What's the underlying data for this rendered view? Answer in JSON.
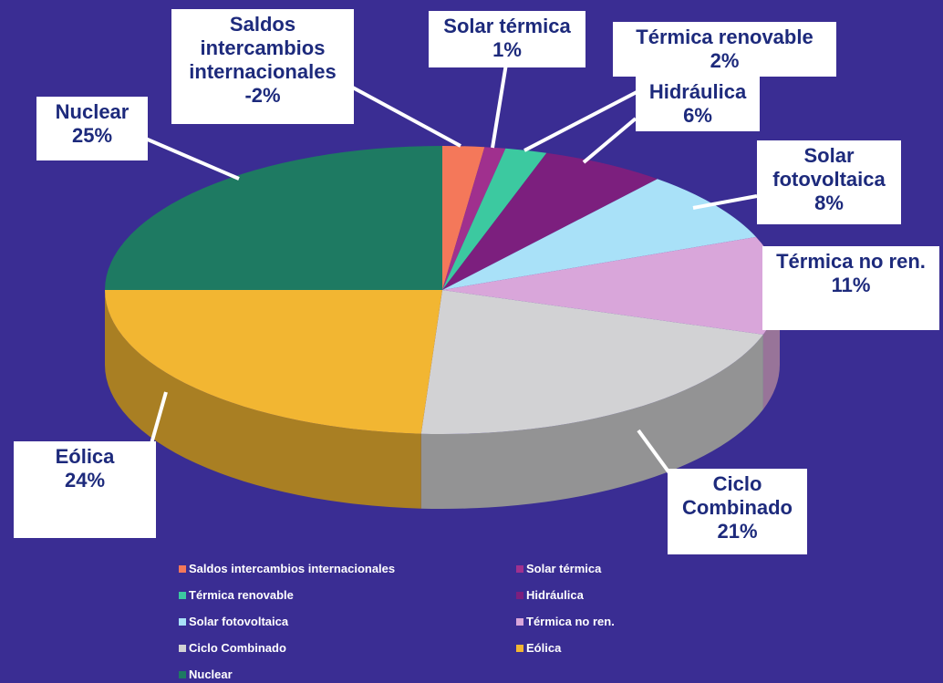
{
  "chart_data": {
    "type": "pie",
    "categories": [
      "Saldos intercambios internacionales",
      "Solar térmica",
      "Térmica renovable",
      "Hidráulica",
      "Solar fotovoltaica",
      "Térmica no ren.",
      "Ciclo Combinado",
      "Eólica",
      "Nuclear"
    ],
    "values": [
      -2,
      1,
      2,
      6,
      8,
      11,
      21,
      24,
      25
    ],
    "value_labels": [
      "-2%",
      "1%",
      "2%",
      "6%",
      "8%",
      "11%",
      "21%",
      "24%",
      "25%"
    ],
    "colors": [
      "#f4785a",
      "#a0308e",
      "#3cc9a0",
      "#7c1f7e",
      "#a9e1f8",
      "#d9a6da",
      "#d2d2d4",
      "#f2b632",
      "#1e7a62"
    ],
    "legend": "bottom"
  }
}
